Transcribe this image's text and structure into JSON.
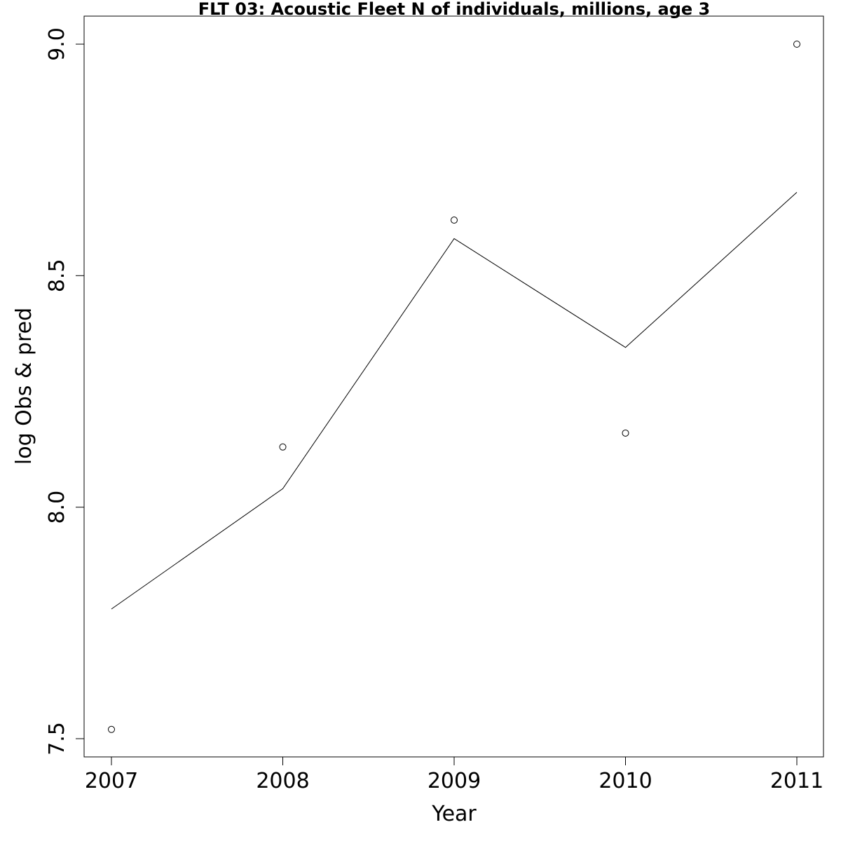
{
  "chart_data": {
    "type": "line",
    "title": "FLT 03: Acoustic Fleet  N of individuals, millions, age 3",
    "xlabel": "Year",
    "ylabel": "log Obs & pred",
    "x": [
      2007,
      2008,
      2009,
      2010,
      2011
    ],
    "xlim": [
      2007,
      2011
    ],
    "ylim": [
      7.5,
      9.0
    ],
    "x_ticks": [
      "2007",
      "2008",
      "2009",
      "2010",
      "2011"
    ],
    "y_ticks": [
      "7.5",
      "8.0",
      "8.5",
      "9.0"
    ],
    "grid": false,
    "series": [
      {
        "style": "points",
        "values": [
          7.52,
          8.13,
          8.62,
          8.16,
          9.0
        ]
      },
      {
        "style": "line",
        "values": [
          7.78,
          8.04,
          8.58,
          8.345,
          8.68
        ]
      }
    ]
  }
}
